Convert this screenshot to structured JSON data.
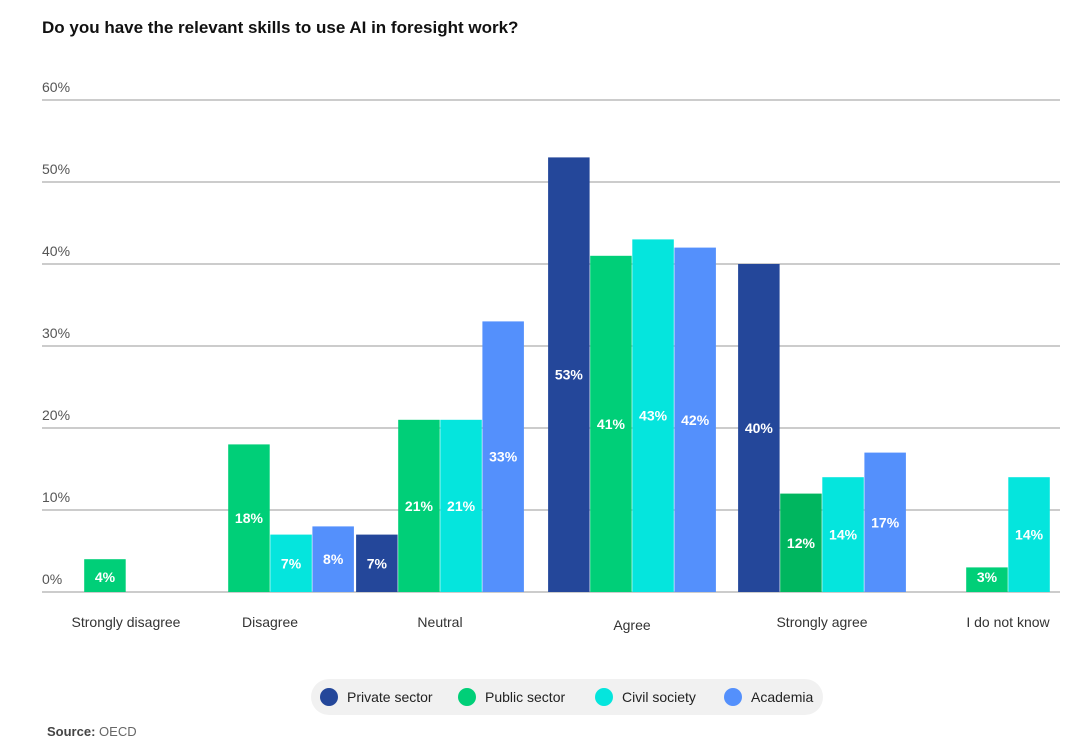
{
  "title": "Do you have the relevant skills to use AI in foresight work?",
  "source": {
    "label": "Source:",
    "value": "OECD"
  },
  "colors": {
    "grid": "#999999",
    "axis_text": "#555555",
    "category_text": "#333333",
    "legend_bg": "#f1f1f1"
  },
  "chart_data": {
    "type": "bar",
    "title": "Do you have the relevant skills to use AI in foresight work?",
    "xlabel": "",
    "ylabel": "",
    "ylim": [
      0,
      60
    ],
    "yticks": [
      0,
      10,
      20,
      30,
      40,
      50,
      60
    ],
    "ytick_labels": [
      "0%",
      "10%",
      "20%",
      "30%",
      "40%",
      "50%",
      "60%"
    ],
    "grid": true,
    "legend_position": "bottom-center",
    "categories": [
      "Strongly disagree",
      "Disagree",
      "Neutral",
      "Agree",
      "Strongly agree",
      "I do not know"
    ],
    "series": [
      {
        "name": "Private sector",
        "color": "#24479a",
        "values": [
          null,
          null,
          7,
          53,
          40,
          null
        ],
        "labels": [
          null,
          null,
          "7%",
          "53%",
          "40%",
          null
        ]
      },
      {
        "name": "Public sector",
        "color": "#00cf78",
        "values": [
          4,
          18,
          21,
          41,
          12,
          3
        ],
        "labels": [
          "4%",
          "18%",
          "21%",
          "41%",
          "12%",
          "3%"
        ]
      },
      {
        "name": "Civil society",
        "color": "#05e5dd",
        "values": [
          null,
          7,
          21,
          43,
          14,
          14
        ],
        "labels": [
          null,
          "7%",
          "21%",
          "43%",
          "14%",
          "14%"
        ]
      },
      {
        "name": "Academia",
        "color": "#5490fc",
        "values": [
          null,
          8,
          33,
          42,
          17,
          null
        ],
        "labels": [
          null,
          "8%",
          "33%",
          "42%",
          "17%",
          null
        ]
      }
    ]
  }
}
